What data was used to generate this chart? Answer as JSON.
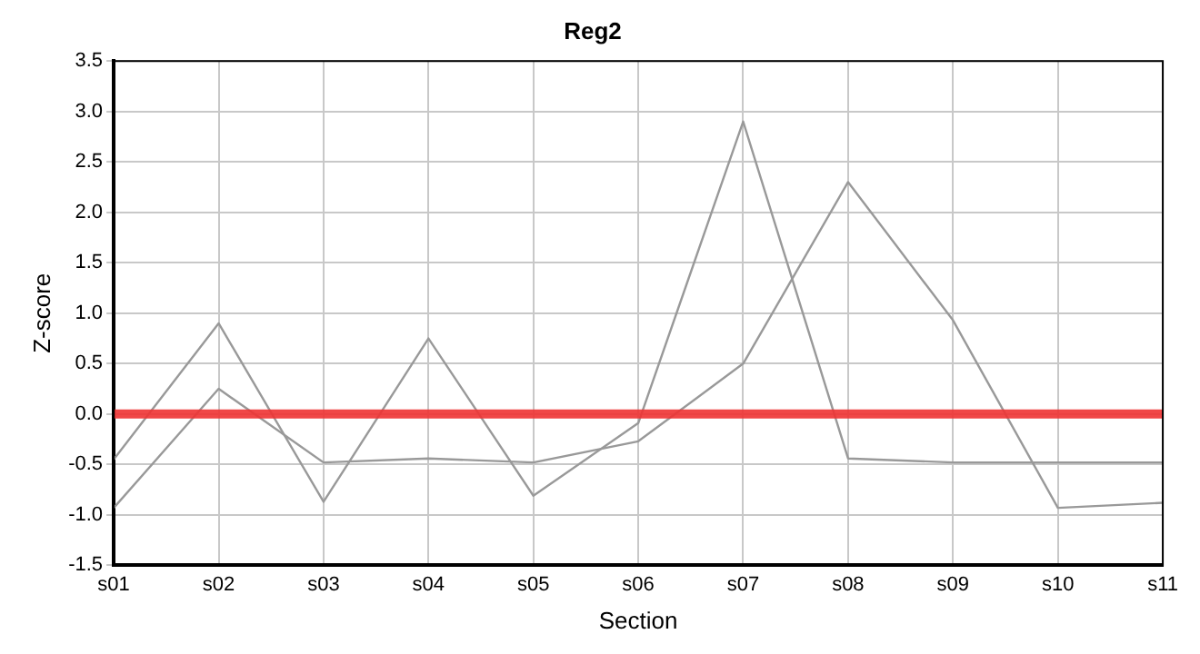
{
  "chart_data": {
    "type": "line",
    "title": "Reg2",
    "xlabel": "Section",
    "ylabel": "Z-score",
    "categories": [
      "s01",
      "s02",
      "s03",
      "s04",
      "s05",
      "s06",
      "s07",
      "s08",
      "s09",
      "s10",
      "s11"
    ],
    "series": [
      {
        "color": "#999999",
        "values": [
          -0.45,
          0.9,
          -0.87,
          0.75,
          -0.81,
          -0.09,
          2.9,
          -0.44,
          -0.48,
          -0.48,
          -0.48
        ]
      },
      {
        "color": "#999999",
        "values": [
          -0.93,
          0.25,
          -0.48,
          -0.44,
          -0.48,
          -0.27,
          0.5,
          2.3,
          0.93,
          -0.93,
          -0.88
        ]
      }
    ],
    "ylim": [
      -1.5,
      3.5
    ],
    "yticks": [
      {
        "value": -1.5,
        "label": "-1.5"
      },
      {
        "value": -1,
        "label": "-1.0"
      },
      {
        "value": -0.5,
        "label": "-0.5"
      },
      {
        "value": 0,
        "label": "0.0"
      },
      {
        "value": 0.5,
        "label": "0.5"
      },
      {
        "value": 1,
        "label": "1.0"
      },
      {
        "value": 1.5,
        "label": "1.5"
      },
      {
        "value": 2,
        "label": "2.0"
      },
      {
        "value": 2.5,
        "label": "2.5"
      },
      {
        "value": 3,
        "label": "3.0"
      },
      {
        "value": 3.5,
        "label": "3.5"
      }
    ],
    "ref_lines": [
      {
        "axis": "y",
        "value": 0,
        "color": "#ee3333"
      }
    ],
    "grid": true,
    "legend": false,
    "marker": "none",
    "line_style": "solid"
  }
}
